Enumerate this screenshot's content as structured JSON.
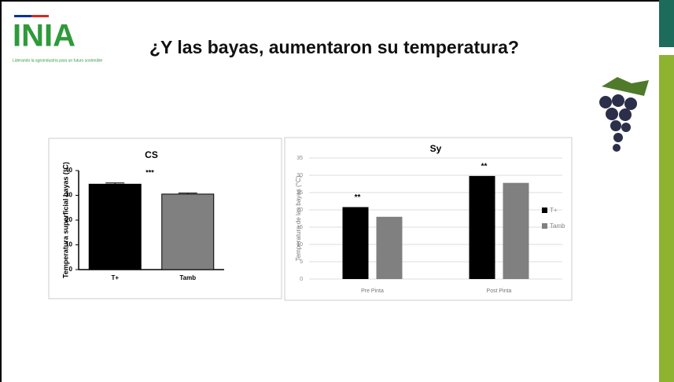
{
  "header": {
    "logo": "INIA",
    "tagline": "Liderando la agroindustria para un futuro sostenible",
    "title": "¿Y las bayas, aumentaron su temperatura?"
  },
  "chart_data": [
    {
      "type": "bar",
      "title": "CS",
      "y_label": "Temperatura superficial bayas (°C)",
      "categories": [
        "T+",
        "Tamb"
      ],
      "values": [
        34.5,
        30.5
      ],
      "errors": [
        0.5,
        0.4
      ],
      "colors": [
        "#000000",
        "#808080"
      ],
      "annotation": "***",
      "ylim": [
        0,
        40
      ],
      "yticks": [
        0,
        10,
        20,
        30,
        40
      ]
    },
    {
      "type": "bar",
      "title": "Sy",
      "y_label": "Temperatura de las bayas (°C)",
      "categories": [
        "Pre Pinta",
        "Post Pinta"
      ],
      "series": [
        {
          "name": "T+",
          "color": "#000000",
          "values": [
            20.8,
            29.8
          ]
        },
        {
          "name": "Tamb",
          "color": "#808080",
          "values": [
            18,
            27.8
          ]
        }
      ],
      "annotations": [
        "**",
        "**"
      ],
      "legend": "right",
      "grid": true,
      "ylim": [
        0,
        35
      ],
      "yticks": [
        0,
        5,
        10,
        15,
        20,
        25,
        30,
        35
      ]
    }
  ]
}
